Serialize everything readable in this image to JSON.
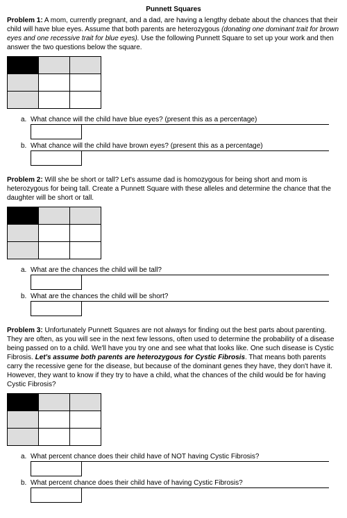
{
  "title": "Punnett Squares",
  "problems": [
    {
      "label": "Problem 1:",
      "text_parts": [
        {
          "text": "  A mom, currently pregnant, and a dad, are having a lengthy debate about the chances that their child will have blue eyes. Assume that both parents are heterozygous ",
          "style": "plain"
        },
        {
          "text": "(donating one dominant trait for brown eyes and one recessive trait for blue eyes).",
          "style": "italic"
        },
        {
          "text": " Use the following Punnett Square to set up your work and then answer the two questions below the square.",
          "style": "plain"
        }
      ],
      "questions": [
        {
          "label": "a.",
          "text": "What chance will the child have blue eyes?  (present this as a percentage)"
        },
        {
          "label": "b.",
          "text": "What chance will the child have brown eyes? (present this as a percentage)"
        }
      ]
    },
    {
      "label": "Problem 2:",
      "text_parts": [
        {
          "text": " Will she be short or tall? Let's assume dad is homozygous for being short and mom is heterozygous for being tall.  Create a Punnett Square with these alleles and determine the chance that the daughter will be short or tall.",
          "style": "plain"
        }
      ],
      "questions": [
        {
          "label": "a.",
          "text": "What are the chances the child will be tall?"
        },
        {
          "label": "b.",
          "text": "What are the chances the child will be short?"
        }
      ]
    },
    {
      "label": "Problem 3:",
      "text_parts": [
        {
          "text": " Unfortunately Punnett Squares are not always for finding out the best parts about parenting. They are often, as you will see in the next few lessons, often used to determine the probability of a disease being passed on to a child.  We'll have you try one and see what that looks like. One such disease is Cystic Fibrosis. ",
          "style": "plain"
        },
        {
          "text": "Let's assume both parents are heterozygous for Cystic Fibrosis",
          "style": "bold-italic"
        },
        {
          "text": ". That means both parents carry the recessive gene for the disease, but because of the dominant genes they have, they don't have it. However, they want to know if they try to have a child, what the chances of the child would be for having Cystic Fibrosis?",
          "style": "plain"
        }
      ],
      "questions": [
        {
          "label": "a.",
          "text": "What percent chance does their child have of NOT having Cystic Fibrosis?"
        },
        {
          "label": "b.",
          "text": "What percent chance does their child have of having Cystic Fibrosis?"
        }
      ]
    }
  ],
  "punnett_layout": [
    [
      "black",
      "grey",
      "grey"
    ],
    [
      "grey",
      "white",
      "white"
    ],
    [
      "grey",
      "white",
      "white"
    ]
  ]
}
